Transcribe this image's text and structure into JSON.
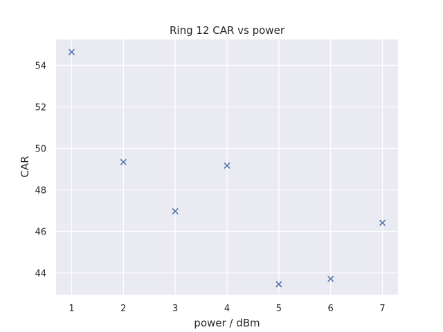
{
  "chart_data": {
    "type": "scatter",
    "title": "Ring 12 CAR vs power",
    "xlabel": "power / dBm",
    "ylabel": "CAR",
    "xlim": [
      0.7,
      7.3
    ],
    "ylim": [
      42.95,
      55.25
    ],
    "xticks": [
      1,
      2,
      3,
      4,
      5,
      6,
      7
    ],
    "yticks": [
      44,
      46,
      48,
      50,
      52,
      54
    ],
    "grid": true,
    "marker": "x",
    "colors": {
      "background": "#eaeaf2",
      "grid": "#ffffff",
      "marker": "#4c72b0"
    },
    "series": [
      {
        "x": [
          1,
          2,
          3,
          4,
          5,
          6,
          7
        ],
        "y": [
          54.64,
          49.34,
          46.97,
          49.17,
          43.45,
          43.71,
          46.41
        ]
      }
    ]
  }
}
